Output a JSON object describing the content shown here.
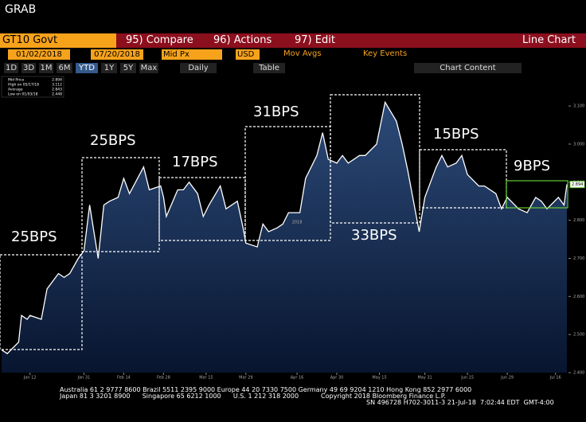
{
  "header": {
    "title": "GRAB",
    "security": "GT10 Govt",
    "menu": [
      "95) Compare",
      "96) Actions",
      "97) Edit"
    ],
    "chart_kind": "Line Chart"
  },
  "controls": {
    "start_date": "01/02/2018",
    "end_date": "07/20/2018",
    "field": "Mid Px",
    "currency": "USD",
    "mov_avgs": "Mov Avgs",
    "key_events": "Key Events",
    "periods": [
      "1D",
      "3D",
      "1M",
      "6M",
      "YTD",
      "1Y",
      "5Y",
      "Max"
    ],
    "frequency": "Daily",
    "table": "Table",
    "chart_content": "Chart Content"
  },
  "legend": [
    {
      "label": "Mid Price",
      "value": "2.894"
    },
    {
      "label": "High on 05/17/18",
      "value": "3.112"
    },
    {
      "label": "Average",
      "value": "2.843"
    },
    {
      "label": "Low on 01/03/18",
      "value": "2.448"
    }
  ],
  "chart_data": {
    "type": "line",
    "color": "#ffffff",
    "x": [
      "2018-01-02",
      "2018-01-04",
      "2018-01-08",
      "2018-01-09",
      "2018-01-11",
      "2018-01-12",
      "2018-01-16",
      "2018-01-18",
      "2018-01-22",
      "2018-01-24",
      "2018-01-26",
      "2018-01-29",
      "2018-01-31",
      "2018-02-02",
      "2018-02-05",
      "2018-02-07",
      "2018-02-09",
      "2018-02-12",
      "2018-02-14",
      "2018-02-16",
      "2018-02-21",
      "2018-02-23",
      "2018-02-27",
      "2018-02-28",
      "2018-03-01",
      "2018-03-05",
      "2018-03-07",
      "2018-03-09",
      "2018-03-12",
      "2018-03-14",
      "2018-03-16",
      "2018-03-20",
      "2018-03-22",
      "2018-03-26",
      "2018-03-28",
      "2018-03-29",
      "2018-04-02",
      "2018-04-04",
      "2018-04-06",
      "2018-04-09",
      "2018-04-11",
      "2018-04-13",
      "2018-04-17",
      "2018-04-19",
      "2018-04-23",
      "2018-04-25",
      "2018-04-27",
      "2018-04-30",
      "2018-05-02",
      "2018-05-04",
      "2018-05-08",
      "2018-05-10",
      "2018-05-14",
      "2018-05-17",
      "2018-05-21",
      "2018-05-23",
      "2018-05-25",
      "2018-05-29",
      "2018-05-31",
      "2018-06-04",
      "2018-06-06",
      "2018-06-08",
      "2018-06-11",
      "2018-06-13",
      "2018-06-15",
      "2018-06-19",
      "2018-06-21",
      "2018-06-25",
      "2018-06-27",
      "2018-06-29",
      "2018-07-03",
      "2018-07-06",
      "2018-07-09",
      "2018-07-11",
      "2018-07-13",
      "2018-07-17",
      "2018-07-19",
      "2018-07-20"
    ],
    "values": [
      2.46,
      2.45,
      2.48,
      2.55,
      2.54,
      2.55,
      2.54,
      2.62,
      2.66,
      2.65,
      2.66,
      2.7,
      2.72,
      2.84,
      2.7,
      2.84,
      2.85,
      2.86,
      2.91,
      2.87,
      2.94,
      2.88,
      2.89,
      2.86,
      2.81,
      2.88,
      2.88,
      2.9,
      2.87,
      2.81,
      2.84,
      2.89,
      2.83,
      2.85,
      2.78,
      2.74,
      2.73,
      2.79,
      2.77,
      2.78,
      2.79,
      2.82,
      2.82,
      2.91,
      2.97,
      3.03,
      2.96,
      2.95,
      2.97,
      2.95,
      2.97,
      2.97,
      3.0,
      3.11,
      3.06,
      3.0,
      2.93,
      2.77,
      2.86,
      2.94,
      2.97,
      2.94,
      2.95,
      2.97,
      2.92,
      2.89,
      2.89,
      2.87,
      2.83,
      2.86,
      2.83,
      2.82,
      2.86,
      2.85,
      2.83,
      2.86,
      2.84,
      2.894
    ],
    "last_label": "2.894",
    "xlim": [
      "2018-01-02",
      "2018-07-20"
    ],
    "xticks": [
      {
        "value": "2018-01-12",
        "label": "Jan 12"
      },
      {
        "value": "2018-01-31",
        "label": "Jan 31"
      },
      {
        "value": "2018-02-14",
        "label": "Feb 14"
      },
      {
        "value": "2018-02-28",
        "label": "Feb 28"
      },
      {
        "value": "2018-03-15",
        "label": "Mar 15"
      },
      {
        "value": "2018-03-29",
        "label": "Mar 29"
      },
      {
        "value": "2018-04-16",
        "label": "Apr 16"
      },
      {
        "value": "2018-04-30",
        "label": "Apr 30"
      },
      {
        "value": "2018-05-15",
        "label": "May 15"
      },
      {
        "value": "2018-05-31",
        "label": "May 31"
      },
      {
        "value": "2018-06-15",
        "label": "Jun 15"
      },
      {
        "value": "2018-06-29",
        "label": "Jun 29"
      },
      {
        "value": "2018-07-16",
        "label": "Jul 16"
      }
    ],
    "year_label": "2018",
    "ylim": [
      2.4,
      3.14
    ],
    "yticks": [
      {
        "value": 2.4,
        "label": "2.400"
      },
      {
        "value": 2.5,
        "label": "2.500"
      },
      {
        "value": 2.6,
        "label": "2.600"
      },
      {
        "value": 2.7,
        "label": "2.700"
      },
      {
        "value": 2.8,
        "label": "2.800"
      },
      {
        "value": 2.9,
        "label": "2.900"
      },
      {
        "value": 3.0,
        "label": "3.000"
      },
      {
        "value": 3.1,
        "label": "3.100"
      }
    ],
    "annotations": [
      "25BPS",
      "25BPS",
      "17BPS",
      "31BPS",
      "33BPS",
      "15BPS",
      "9BPS"
    ]
  },
  "footer": [
    "Australia 61 2 9777 8600 Brazil 5511 2395 9000 Europe 44 20 7330 7500 Germany 49 69 9204 1210 Hong Kong 852 2977 6000",
    "Japan 81 3 3201 8900      Singapore 65 6212 1000      U.S. 1 212 318 2000           Copyright 2018 Bloomberg Finance L.P.",
    "SN 496728 H702-3011-3 21-Jul-18  7:02:44 EDT  GMT-4:00"
  ]
}
